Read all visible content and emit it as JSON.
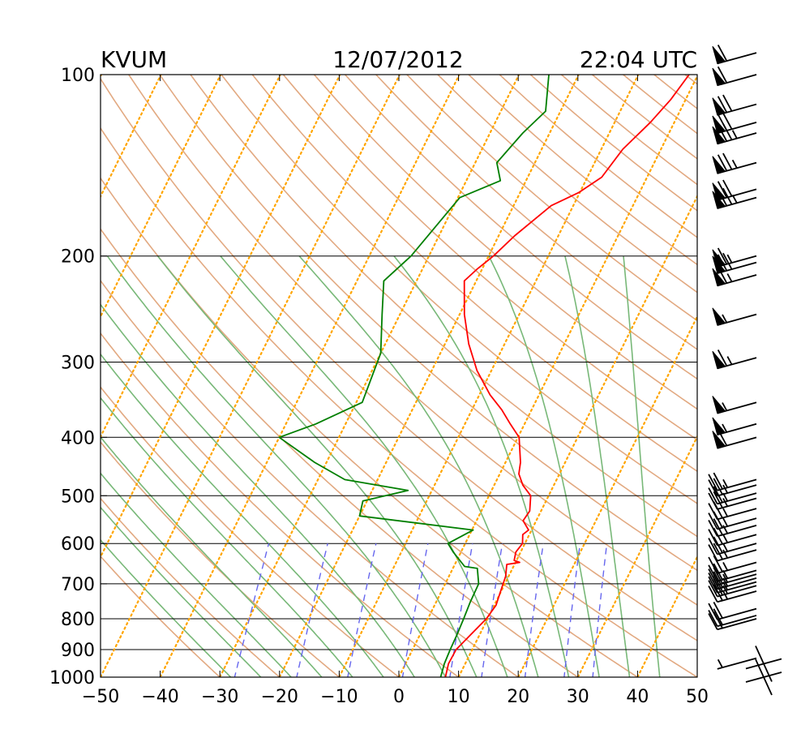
{
  "header": {
    "station": "KVUM",
    "date": "12/07/2012",
    "time": "22:04 UTC"
  },
  "chart_data": {
    "type": "skew-t log-p sounding",
    "x_axis": {
      "label": "",
      "ticks": [
        -50,
        -40,
        -30,
        -20,
        -10,
        0,
        10,
        20,
        30,
        40,
        50
      ],
      "tick_labels": [
        "−50",
        "−40",
        "−30",
        "−20",
        "−10",
        "0",
        "10",
        "20",
        "30",
        "40",
        "50"
      ],
      "range": [
        -50,
        50
      ]
    },
    "y_axis": {
      "label": "",
      "scale": "log",
      "ticks": [
        100,
        200,
        300,
        400,
        500,
        600,
        700,
        800,
        900,
        1000
      ],
      "range": [
        1000,
        100
      ]
    },
    "grid": "isobars",
    "background_lines": {
      "dry_adiabats": {
        "color": "#e2a981"
      },
      "moist_adiabats": {
        "color": "#78b878"
      },
      "mixing_ratio": {
        "color": "#6666ee"
      },
      "isotherms": {
        "color": "#ffa500"
      }
    },
    "series": [
      {
        "id": "temperature",
        "color": "#ff0000",
        "points": [
          [
            1000,
            7.8
          ],
          [
            950,
            7.2
          ],
          [
            900,
            7.3
          ],
          [
            850,
            8.5
          ],
          [
            800,
            9.8
          ],
          [
            760,
            10.3
          ],
          [
            720,
            9.9
          ],
          [
            680,
            9.5
          ],
          [
            650,
            8.7
          ],
          [
            645,
            10.7
          ],
          [
            640,
            9.6
          ],
          [
            620,
            9.2
          ],
          [
            600,
            9.6
          ],
          [
            580,
            8.9
          ],
          [
            570,
            9.5
          ],
          [
            550,
            7.8
          ],
          [
            530,
            8.1
          ],
          [
            500,
            7.0
          ],
          [
            480,
            4.8
          ],
          [
            460,
            3.2
          ],
          [
            440,
            2.5
          ],
          [
            400,
            0.2
          ],
          [
            380,
            -2.4
          ],
          [
            360,
            -5.0
          ],
          [
            340,
            -8.2
          ],
          [
            310,
            -12.4
          ],
          [
            280,
            -16.0
          ],
          [
            250,
            -19.2
          ],
          [
            220,
            -22.0
          ],
          [
            210,
            -20.8
          ],
          [
            200,
            -19.2
          ],
          [
            185,
            -17.3
          ],
          [
            165,
            -13.7
          ],
          [
            157,
            -10.2
          ],
          [
            148,
            -7.6
          ],
          [
            133,
            -6.4
          ],
          [
            120,
            -4.0
          ],
          [
            110,
            -2.5
          ],
          [
            100,
            -1.5
          ]
        ]
      },
      {
        "id": "dewpoint",
        "color": "#007f00",
        "points": [
          [
            1000,
            7.0
          ],
          [
            950,
            6.5
          ],
          [
            900,
            6.3
          ],
          [
            850,
            6.2
          ],
          [
            800,
            6.0
          ],
          [
            750,
            5.7
          ],
          [
            700,
            5.6
          ],
          [
            660,
            4.1
          ],
          [
            655,
            1.8
          ],
          [
            620,
            -1.3
          ],
          [
            600,
            -2.9
          ],
          [
            570,
            0.2
          ],
          [
            540,
            -20.0
          ],
          [
            510,
            -20.7
          ],
          [
            490,
            -14.0
          ],
          [
            470,
            -25.5
          ],
          [
            440,
            -32.0
          ],
          [
            400,
            -40.0
          ],
          [
            380,
            -35.0
          ],
          [
            350,
            -29.0
          ],
          [
            290,
            -30.0
          ],
          [
            250,
            -33.0
          ],
          [
            220,
            -35.5
          ],
          [
            200,
            -33.0
          ],
          [
            160,
            -29.7
          ],
          [
            150,
            -24.3
          ],
          [
            140,
            -26.4
          ],
          [
            125,
            -24.5
          ],
          [
            115,
            -22.5
          ],
          [
            100,
            -25.0
          ]
        ]
      }
    ],
    "wind_barbs": [
      {
        "p": 1000,
        "spd": 0
      },
      {
        "p": 950,
        "spd": 0
      },
      {
        "p": 930,
        "spd": 5
      },
      {
        "p": 800,
        "spd": 20
      },
      {
        "p": 790,
        "spd": 20
      },
      {
        "p": 770,
        "spd": 20
      },
      {
        "p": 720,
        "spd": 25
      },
      {
        "p": 705,
        "spd": 25
      },
      {
        "p": 695,
        "spd": 25
      },
      {
        "p": 685,
        "spd": 25
      },
      {
        "p": 675,
        "spd": 25
      },
      {
        "p": 665,
        "spd": 25
      },
      {
        "p": 645,
        "spd": 25
      },
      {
        "p": 615,
        "spd": 25
      },
      {
        "p": 600,
        "spd": 25
      },
      {
        "p": 580,
        "spd": 25
      },
      {
        "p": 560,
        "spd": 25
      },
      {
        "p": 545,
        "spd": 25
      },
      {
        "p": 525,
        "spd": 25
      },
      {
        "p": 505,
        "spd": 25
      },
      {
        "p": 495,
        "spd": 25
      },
      {
        "p": 480,
        "spd": 25
      },
      {
        "p": 470,
        "spd": 25
      },
      {
        "p": 400,
        "spd": 60
      },
      {
        "p": 380,
        "spd": 55
      },
      {
        "p": 350,
        "spd": 55
      },
      {
        "p": 295,
        "spd": 65
      },
      {
        "p": 250,
        "spd": 55
      },
      {
        "p": 215,
        "spd": 65
      },
      {
        "p": 205,
        "spd": 70
      },
      {
        "p": 200,
        "spd": 65
      },
      {
        "p": 160,
        "spd": 75
      },
      {
        "p": 155,
        "spd": 70
      },
      {
        "p": 140,
        "spd": 75
      },
      {
        "p": 125,
        "spd": 75
      },
      {
        "p": 120,
        "spd": 70
      },
      {
        "p": 112,
        "spd": 70
      },
      {
        "p": 100,
        "spd": 60
      },
      {
        "p": 92,
        "spd": 60
      }
    ]
  }
}
